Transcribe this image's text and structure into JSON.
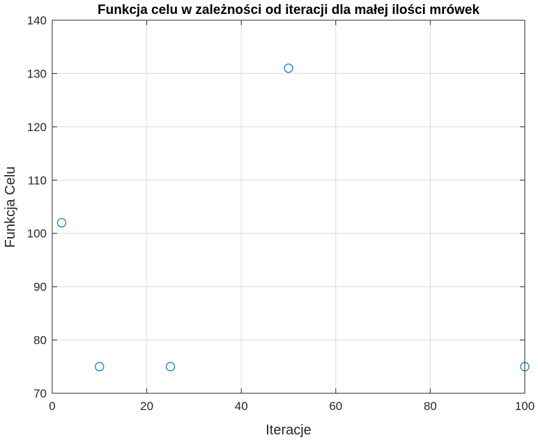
{
  "chart_data": {
    "type": "scatter",
    "title": "Funkcja celu w zależności od iteracji dla małej ilości mrówek",
    "xlabel": "Iteracje",
    "ylabel": "Funkcja Celu",
    "xlim": [
      0,
      100
    ],
    "ylim": [
      70,
      140
    ],
    "xticks": [
      0,
      20,
      40,
      60,
      80,
      100
    ],
    "yticks": [
      70,
      80,
      90,
      100,
      110,
      120,
      130,
      140
    ],
    "grid": true,
    "marker": "circle-open",
    "color": "#0072BD",
    "series": [
      {
        "x": [
          2,
          10,
          25,
          50,
          100
        ],
        "y": [
          102,
          75,
          75,
          131,
          75
        ]
      }
    ]
  }
}
